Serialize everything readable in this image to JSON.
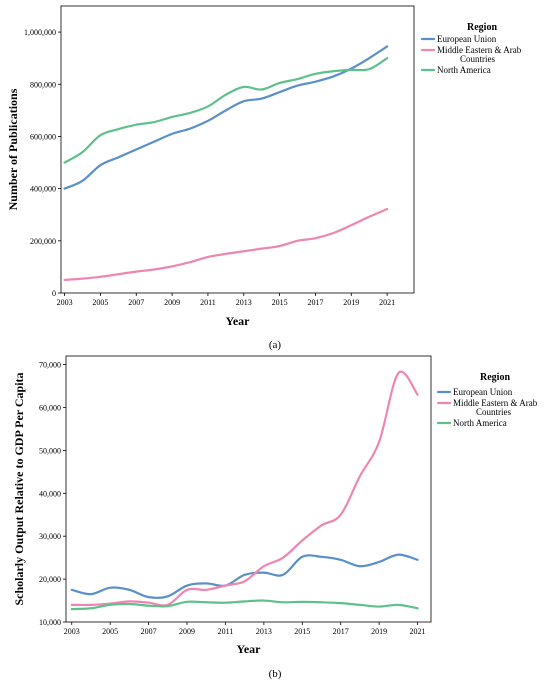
{
  "chart_data": [
    {
      "type": "line",
      "title": "",
      "panel_label": "(a)",
      "xlabel": "Year",
      "ylabel": "Number of Publications",
      "x": [
        2003,
        2004,
        2005,
        2006,
        2007,
        2008,
        2009,
        2010,
        2011,
        2012,
        2013,
        2014,
        2015,
        2016,
        2017,
        2018,
        2019,
        2020,
        2021
      ],
      "xticks": [
        "2003",
        "2005",
        "2007",
        "2009",
        "2011",
        "2013",
        "2015",
        "2017",
        "2019",
        "2021"
      ],
      "yticks": [
        "0",
        "200,000",
        "400,000",
        "600,000",
        "800,000",
        "1,000,000"
      ],
      "ylim": [
        0,
        1100000
      ],
      "xlim": [
        2002.8,
        2022.5
      ],
      "grid": false,
      "legend": {
        "title": "Region",
        "placement": "top-right"
      },
      "series": [
        {
          "name": "European Union",
          "color": "#5b8fc9",
          "values": [
            400000,
            430000,
            490000,
            520000,
            550000,
            580000,
            610000,
            630000,
            660000,
            700000,
            735000,
            745000,
            770000,
            795000,
            810000,
            830000,
            860000,
            900000,
            945000
          ]
        },
        {
          "name": "Middle Eastern & Arab Countries",
          "color": "#ee86b0",
          "values": [
            50000,
            55000,
            62000,
            72000,
            82000,
            90000,
            102000,
            118000,
            138000,
            150000,
            160000,
            170000,
            180000,
            200000,
            210000,
            230000,
            260000,
            292000,
            322000
          ]
        },
        {
          "name": "North America",
          "color": "#5ec08a",
          "values": [
            500000,
            540000,
            605000,
            628000,
            645000,
            655000,
            675000,
            690000,
            715000,
            760000,
            790000,
            780000,
            805000,
            820000,
            840000,
            850000,
            855000,
            858000,
            900000
          ]
        }
      ]
    },
    {
      "type": "line",
      "title": "",
      "panel_label": "(b)",
      "xlabel": "Year",
      "ylabel": "Scholarly Output Relative to GDP Per Capita",
      "x": [
        2003,
        2004,
        2005,
        2006,
        2007,
        2008,
        2009,
        2010,
        2011,
        2012,
        2013,
        2014,
        2015,
        2016,
        2017,
        2018,
        2019,
        2020,
        2021
      ],
      "xticks": [
        "2003",
        "2005",
        "2007",
        "2009",
        "2011",
        "2013",
        "2015",
        "2017",
        "2019",
        "2021"
      ],
      "yticks": [
        "10,000",
        "20,000",
        "30,000",
        "40,000",
        "50,000",
        "60,000",
        "70,000"
      ],
      "ylim": [
        10000,
        72000
      ],
      "xlim": [
        2002.7,
        2021.7
      ],
      "grid": false,
      "legend": {
        "title": "Region",
        "placement": "top-right"
      },
      "series": [
        {
          "name": "European Union",
          "color": "#5b8fc9",
          "values": [
            17500,
            16500,
            18000,
            17500,
            15800,
            16000,
            18500,
            19000,
            18500,
            21000,
            21500,
            21000,
            25200,
            25200,
            24500,
            23000,
            24000,
            25700,
            24500
          ]
        },
        {
          "name": "Middle Eastern & Arab Countries",
          "color": "#ee86b0",
          "values": [
            14000,
            14000,
            14300,
            14800,
            14500,
            14000,
            17500,
            17500,
            18500,
            19500,
            23000,
            25000,
            29000,
            32500,
            35000,
            44000,
            52000,
            68000,
            63000
          ]
        },
        {
          "name": "North America",
          "color": "#5ec08a",
          "values": [
            13000,
            13200,
            14000,
            14200,
            13800,
            13700,
            14700,
            14600,
            14500,
            14800,
            15000,
            14600,
            14700,
            14600,
            14400,
            14000,
            13600,
            14000,
            13200
          ]
        }
      ]
    }
  ]
}
